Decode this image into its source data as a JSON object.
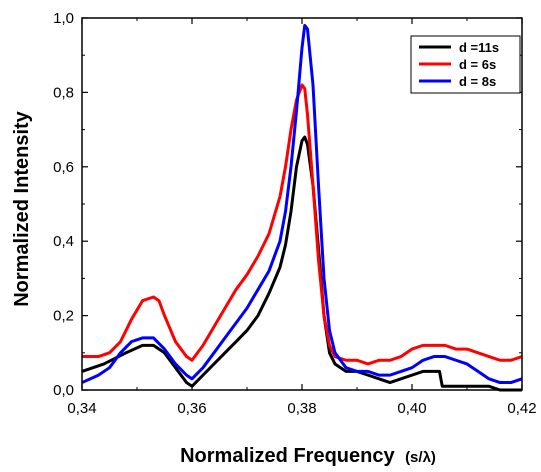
{
  "chart_data": {
    "type": "line",
    "title": "",
    "xlabel": "Normalized Frequency",
    "xlabel_unit": "(s/λ)",
    "ylabel": "Normalized Intensity",
    "xlim": [
      0.34,
      0.42
    ],
    "ylim": [
      0.0,
      1.0
    ],
    "x_ticks": [
      "0,34",
      "0,36",
      "0,38",
      "0,40",
      "0,42"
    ],
    "y_ticks": [
      "0,0",
      "0,2",
      "0,4",
      "0,6",
      "0,8",
      "1,0"
    ],
    "x_tick_values": [
      0.34,
      0.36,
      0.38,
      0.4,
      0.42
    ],
    "y_tick_values": [
      0.0,
      0.2,
      0.4,
      0.6,
      0.8,
      1.0
    ],
    "grid": false,
    "legend_position": "top-right",
    "series": [
      {
        "name": "d =11s",
        "color": "#000000",
        "x": [
          0.34,
          0.344,
          0.348,
          0.351,
          0.353,
          0.355,
          0.357,
          0.359,
          0.36,
          0.362,
          0.364,
          0.366,
          0.368,
          0.37,
          0.372,
          0.374,
          0.376,
          0.377,
          0.378,
          0.379,
          0.38,
          0.3805,
          0.381,
          0.382,
          0.383,
          0.384,
          0.385,
          0.386,
          0.388,
          0.39,
          0.392,
          0.394,
          0.396,
          0.398,
          0.4,
          0.402,
          0.404,
          0.405,
          0.4055,
          0.406,
          0.408,
          0.41,
          0.412,
          0.414,
          0.416,
          0.418,
          0.42
        ],
        "y": [
          0.05,
          0.07,
          0.1,
          0.12,
          0.12,
          0.1,
          0.06,
          0.02,
          0.01,
          0.04,
          0.07,
          0.1,
          0.13,
          0.16,
          0.2,
          0.26,
          0.33,
          0.39,
          0.48,
          0.6,
          0.67,
          0.68,
          0.66,
          0.55,
          0.38,
          0.2,
          0.1,
          0.07,
          0.05,
          0.05,
          0.04,
          0.03,
          0.02,
          0.03,
          0.04,
          0.05,
          0.05,
          0.05,
          0.01,
          0.01,
          0.01,
          0.01,
          0.01,
          0.01,
          0.0,
          0.0,
          0.0
        ]
      },
      {
        "name": "d = 6s",
        "color": "#ff0000",
        "x": [
          0.34,
          0.343,
          0.345,
          0.347,
          0.349,
          0.351,
          0.353,
          0.354,
          0.355,
          0.357,
          0.359,
          0.36,
          0.362,
          0.364,
          0.366,
          0.368,
          0.37,
          0.372,
          0.374,
          0.376,
          0.377,
          0.378,
          0.379,
          0.38,
          0.3805,
          0.381,
          0.382,
          0.383,
          0.384,
          0.385,
          0.386,
          0.388,
          0.39,
          0.392,
          0.394,
          0.396,
          0.398,
          0.4,
          0.402,
          0.404,
          0.406,
          0.408,
          0.41,
          0.412,
          0.414,
          0.416,
          0.418,
          0.42
        ],
        "y": [
          0.09,
          0.09,
          0.1,
          0.13,
          0.19,
          0.24,
          0.25,
          0.24,
          0.2,
          0.13,
          0.09,
          0.08,
          0.12,
          0.17,
          0.22,
          0.27,
          0.31,
          0.36,
          0.42,
          0.52,
          0.6,
          0.7,
          0.78,
          0.82,
          0.81,
          0.74,
          0.55,
          0.35,
          0.2,
          0.12,
          0.09,
          0.08,
          0.08,
          0.07,
          0.08,
          0.08,
          0.09,
          0.11,
          0.12,
          0.12,
          0.12,
          0.11,
          0.11,
          0.1,
          0.09,
          0.08,
          0.08,
          0.09
        ]
      },
      {
        "name": "d = 8s",
        "color": "#0000ff",
        "x": [
          0.34,
          0.343,
          0.345,
          0.347,
          0.349,
          0.351,
          0.353,
          0.355,
          0.357,
          0.359,
          0.36,
          0.362,
          0.364,
          0.366,
          0.368,
          0.37,
          0.372,
          0.374,
          0.376,
          0.377,
          0.378,
          0.379,
          0.38,
          0.3805,
          0.381,
          0.382,
          0.383,
          0.384,
          0.385,
          0.386,
          0.388,
          0.39,
          0.392,
          0.394,
          0.396,
          0.398,
          0.4,
          0.402,
          0.404,
          0.406,
          0.408,
          0.41,
          0.412,
          0.414,
          0.416,
          0.418,
          0.42
        ],
        "y": [
          0.02,
          0.04,
          0.06,
          0.1,
          0.13,
          0.14,
          0.14,
          0.11,
          0.07,
          0.04,
          0.03,
          0.06,
          0.1,
          0.14,
          0.18,
          0.22,
          0.27,
          0.32,
          0.4,
          0.48,
          0.6,
          0.75,
          0.92,
          0.98,
          0.97,
          0.82,
          0.55,
          0.3,
          0.16,
          0.1,
          0.06,
          0.05,
          0.05,
          0.04,
          0.04,
          0.05,
          0.06,
          0.08,
          0.09,
          0.09,
          0.08,
          0.07,
          0.05,
          0.03,
          0.02,
          0.02,
          0.03
        ]
      }
    ]
  }
}
